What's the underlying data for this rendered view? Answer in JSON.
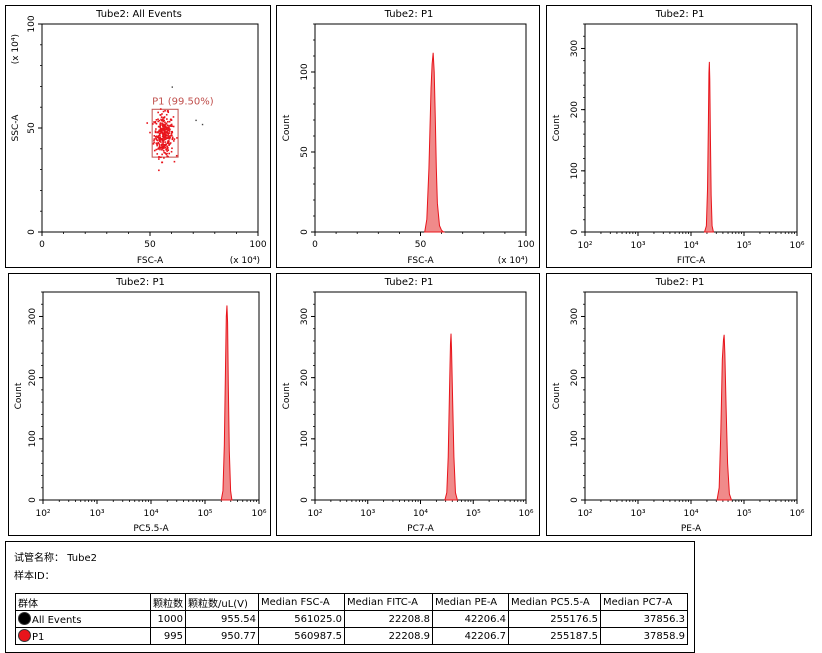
{
  "chart_data": [
    {
      "id": "p1",
      "type": "scatter",
      "title": "Tube2: All Events",
      "xlabel": "FSC-A",
      "ylabel": "SSC-A",
      "xscale": "linear",
      "xlim": [
        0,
        100
      ],
      "ylim": [
        0,
        100
      ],
      "xticks": [
        "0",
        "50",
        "100"
      ],
      "yticks": [
        "0",
        "50",
        "100"
      ],
      "xmultiplier": "(x 10⁴)",
      "ymultiplier": "(x 10⁴)",
      "gate": {
        "label": "P1 (99.50%)",
        "x": [
          51,
          63
        ],
        "y": [
          36,
          59
        ]
      },
      "cluster": {
        "x_center": 56,
        "y_center": 47,
        "spread_x": 2.2,
        "spread_y": 5,
        "count": 320
      },
      "outliers": [
        [
          60,
          70
        ],
        [
          71,
          54
        ],
        [
          74,
          52
        ]
      ]
    },
    {
      "id": "p2",
      "type": "area",
      "title": "Tube2: P1",
      "xlabel": "FSC-A",
      "ylabel": "Count",
      "xscale": "linear",
      "xlim": [
        0,
        100
      ],
      "ylim": [
        0,
        130
      ],
      "xticks": [
        "0",
        "50",
        "100"
      ],
      "yticks": [
        "0",
        "50",
        "100"
      ],
      "xmultiplier": "(x 10⁴)",
      "x": [
        52,
        53,
        54,
        55,
        55.5,
        56,
        56.5,
        57,
        57.5,
        58,
        59,
        60,
        61
      ],
      "values": [
        0,
        8,
        40,
        90,
        105,
        112,
        100,
        72,
        40,
        18,
        4,
        1,
        0
      ]
    },
    {
      "id": "p3",
      "type": "area",
      "title": "Tube2: P1",
      "xlabel": "FITC-A",
      "ylabel": "Count",
      "xscale": "log",
      "xlim": [
        100,
        1000000
      ],
      "ylim": [
        0,
        340
      ],
      "xticks": [
        "10²",
        "10³",
        "10⁴",
        "10⁵",
        "10⁶"
      ],
      "yticks": [
        "0",
        "100",
        "200",
        "300"
      ],
      "x": [
        18000,
        19500,
        20500,
        21300,
        21800,
        22200,
        22600,
        23200,
        24000,
        25000,
        26500
      ],
      "values": [
        0,
        10,
        70,
        180,
        260,
        278,
        250,
        160,
        60,
        10,
        0
      ]
    },
    {
      "id": "p4",
      "type": "area",
      "title": "Tube2: P1",
      "xlabel": "PC5.5-A",
      "ylabel": "Count",
      "xscale": "log",
      "xlim": [
        100,
        1000000
      ],
      "ylim": [
        0,
        340
      ],
      "xticks": [
        "10²",
        "10³",
        "10⁴",
        "10⁵",
        "10⁶"
      ],
      "yticks": [
        "0",
        "100",
        "200",
        "300"
      ],
      "x": [
        200000,
        215000,
        228000,
        240000,
        248000,
        255000,
        262000,
        270000,
        282000,
        298000,
        315000
      ],
      "values": [
        0,
        15,
        90,
        220,
        300,
        318,
        290,
        190,
        80,
        15,
        0
      ]
    },
    {
      "id": "p5",
      "type": "area",
      "title": "Tube2: P1",
      "xlabel": "PC7-A",
      "ylabel": "Count",
      "xscale": "log",
      "xlim": [
        100,
        1000000
      ],
      "ylim": [
        0,
        340
      ],
      "xticks": [
        "10²",
        "10³",
        "10⁴",
        "10⁵",
        "10⁶"
      ],
      "yticks": [
        "0",
        "100",
        "200",
        "300"
      ],
      "x": [
        29000,
        31500,
        33500,
        35500,
        37000,
        37900,
        38800,
        40500,
        43000,
        46000,
        50000
      ],
      "values": [
        0,
        12,
        70,
        180,
        255,
        272,
        245,
        170,
        70,
        12,
        0
      ]
    },
    {
      "id": "p6",
      "type": "area",
      "title": "Tube2: P1",
      "xlabel": "PE-A",
      "ylabel": "Count",
      "xscale": "log",
      "xlim": [
        100,
        1000000
      ],
      "ylim": [
        0,
        340
      ],
      "xticks": [
        "10²",
        "10³",
        "10⁴",
        "10⁵",
        "10⁶"
      ],
      "yticks": [
        "0",
        "100",
        "200",
        "300"
      ],
      "x": [
        31000,
        34000,
        36500,
        39000,
        41000,
        42200,
        43500,
        46000,
        49000,
        53000,
        58000
      ],
      "values": [
        0,
        20,
        110,
        230,
        262,
        270,
        240,
        150,
        60,
        10,
        0
      ]
    }
  ],
  "info": {
    "tube_label": "试管名称：",
    "tube_value": "Tube2",
    "sample_label": "样本ID："
  },
  "table": {
    "headers": [
      "群体",
      "颗粒数",
      "颗粒数/uL(V)",
      "Median FSC-A",
      "Median FITC-A",
      "Median PE-A",
      "Median PC5.5-A",
      "Median PC7-A"
    ],
    "rows": [
      {
        "color": "#000000",
        "cells": [
          "All Events",
          "1000",
          "955.54",
          "561025.0",
          "22208.8",
          "42206.4",
          "255176.5",
          "37856.3"
        ]
      },
      {
        "color": "#e8141b",
        "cells": [
          "P1",
          "995",
          "950.77",
          "560987.5",
          "22208.9",
          "42206.7",
          "255187.5",
          "37858.9"
        ]
      }
    ]
  },
  "colors": {
    "accent": "#e8141b",
    "fill": "#f08a8a"
  }
}
